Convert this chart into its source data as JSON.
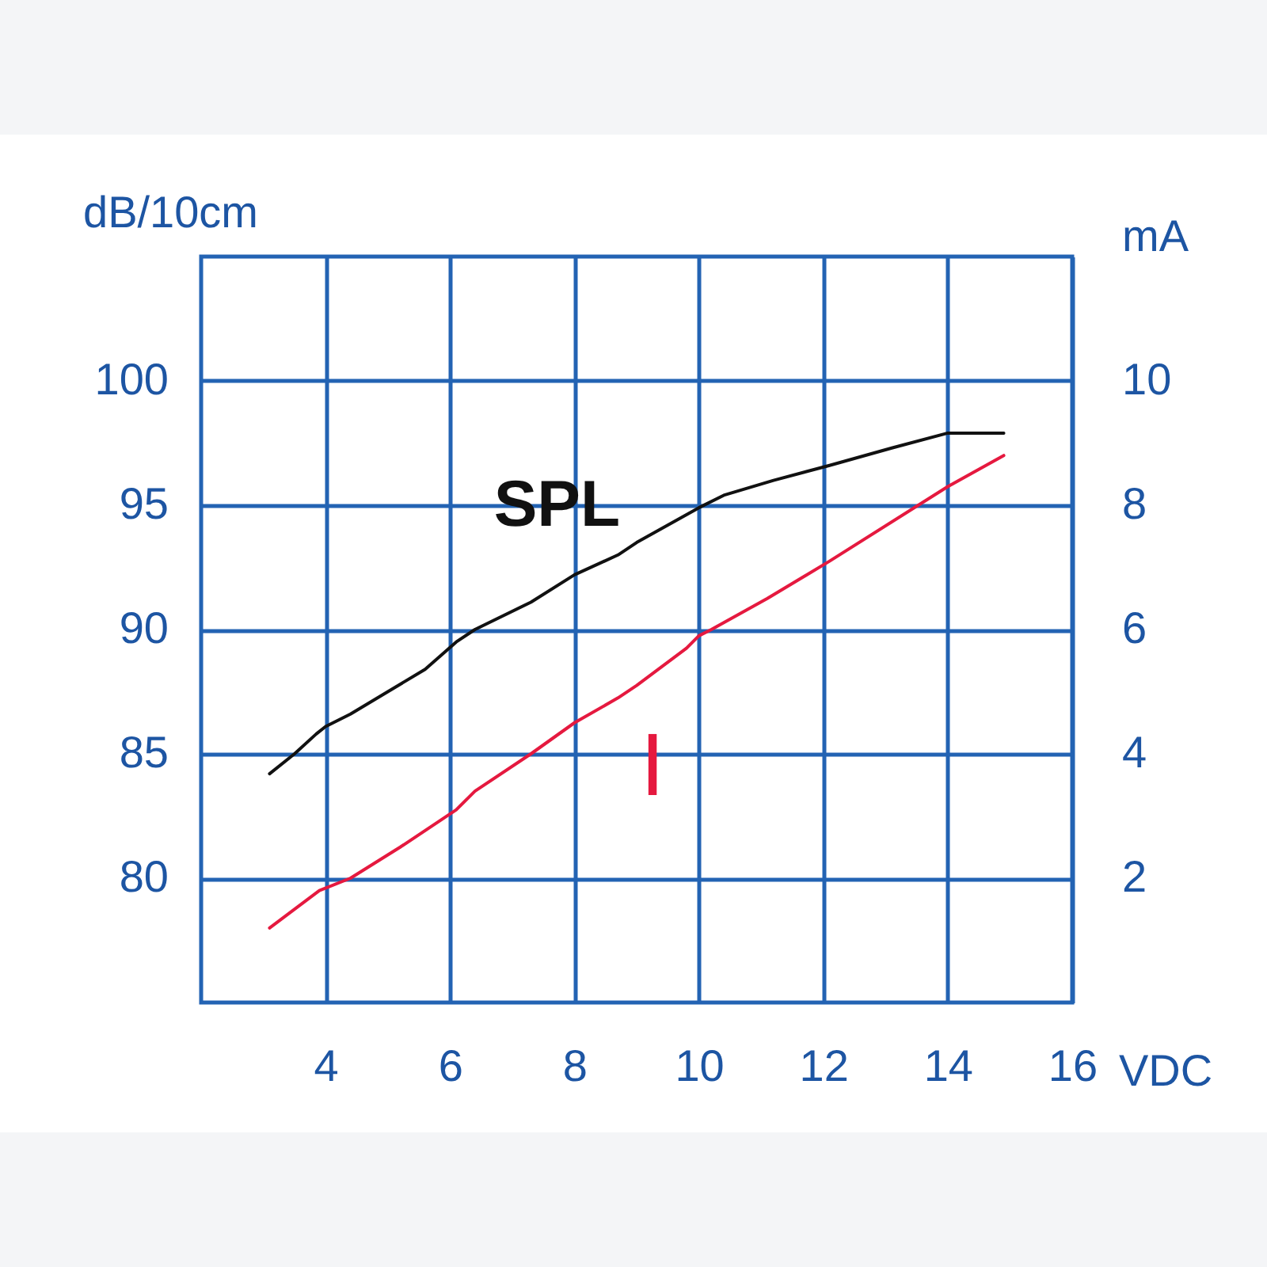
{
  "chart_data": {
    "type": "line",
    "xlabel": "VDC",
    "ylabel": "dB/10cm",
    "y2label": "mA",
    "xlim": [
      2,
      16
    ],
    "xticks": [
      4,
      6,
      8,
      10,
      12,
      14,
      16
    ],
    "ylim": [
      75,
      105
    ],
    "yticks": [
      80,
      85,
      90,
      95,
      100
    ],
    "y2lim": [
      0,
      12
    ],
    "y2ticks": [
      2,
      4,
      6,
      8,
      10
    ],
    "grid": true,
    "line_style": "solid",
    "series": [
      {
        "name": "SPL",
        "color": "#111111",
        "x": [
          3.1,
          3.5,
          3.85,
          4.0,
          4.4,
          5.0,
          5.6,
          6.1,
          6.4,
          7.3,
          8.0,
          8.7,
          9.0,
          10.0,
          10.4,
          11.2,
          12.1,
          13.1,
          14.0,
          14.9
        ],
        "values": [
          84.2,
          85.0,
          85.8,
          86.1,
          86.6,
          87.5,
          88.4,
          89.5,
          90.0,
          91.1,
          92.2,
          93.0,
          93.5,
          94.9,
          95.4,
          96.0,
          96.6,
          97.3,
          97.9,
          97.9
        ]
      },
      {
        "name": "I",
        "color": "#e5193f",
        "axis": "y2",
        "x": [
          3.1,
          3.9,
          4.4,
          5.2,
          6.1,
          6.4,
          7.3,
          8.0,
          8.7,
          9.0,
          9.8,
          10.0,
          10.2,
          11.1,
          12.1,
          14.0,
          14.9
        ],
        "values": [
          1.2,
          1.8,
          2.0,
          2.5,
          3.1,
          3.4,
          4.0,
          4.5,
          4.9,
          5.1,
          5.7,
          5.9,
          6.0,
          6.5,
          7.1,
          8.3,
          8.8
        ]
      }
    ]
  }
}
